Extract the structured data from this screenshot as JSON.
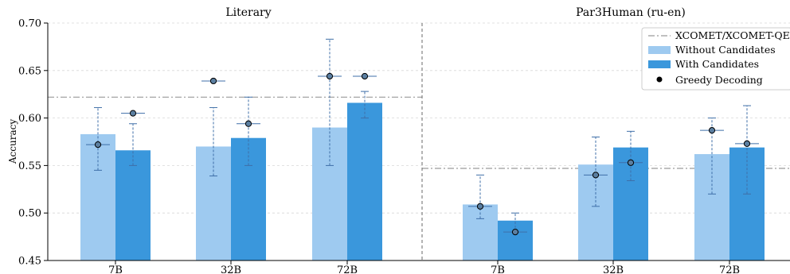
{
  "chart_data": {
    "type": "bar",
    "ylabel": "Accuracy",
    "ylim": [
      0.45,
      0.7
    ],
    "yticks": [
      "0.45",
      "0.50",
      "0.55",
      "0.60",
      "0.65",
      "0.70"
    ],
    "grid": true,
    "legend": {
      "placement": "top-right",
      "items": [
        "XCOMET/XCOMET-QE",
        "Without Candidates",
        "With Candidates",
        "Greedy Decoding"
      ]
    },
    "colors": {
      "without": "#9ecaf0",
      "with": "#3a97dc",
      "error": "#3f6fa8",
      "reference": "#9a9a9a",
      "greedy_fill": "#5b7fa1",
      "divider": "#777777"
    },
    "panels": [
      {
        "title": "Literary",
        "categories": [
          "7B",
          "32B",
          "72B"
        ],
        "reference_line": 0.622,
        "series": [
          {
            "name": "Without Candidates",
            "values": [
              0.583,
              0.57,
              0.59
            ],
            "err_low": [
              0.545,
              0.539,
              0.55
            ],
            "err_high": [
              0.611,
              0.611,
              0.683
            ],
            "greedy": [
              0.572,
              0.639,
              0.644
            ]
          },
          {
            "name": "With Candidates",
            "values": [
              0.566,
              0.579,
              0.616
            ],
            "err_low": [
              0.55,
              0.55,
              0.6
            ],
            "err_high": [
              0.594,
              0.622,
              0.628
            ],
            "greedy": [
              0.605,
              0.594,
              0.644
            ]
          }
        ]
      },
      {
        "title": "Par3Human (ru-en)",
        "categories": [
          "7B",
          "32B",
          "72B"
        ],
        "reference_line": 0.547,
        "series": [
          {
            "name": "Without Candidates",
            "values": [
              0.509,
              0.551,
              0.562
            ],
            "err_low": [
              0.494,
              0.507,
              0.52
            ],
            "err_high": [
              0.54,
              0.58,
              0.6
            ],
            "greedy": [
              0.507,
              0.54,
              0.587
            ]
          },
          {
            "name": "With Candidates",
            "values": [
              0.492,
              0.569,
              0.569
            ],
            "err_low": [
              0.48,
              0.534,
              0.52
            ],
            "err_high": [
              0.5,
              0.586,
              0.613
            ],
            "greedy": [
              0.48,
              0.553,
              0.573
            ]
          }
        ]
      }
    ]
  }
}
